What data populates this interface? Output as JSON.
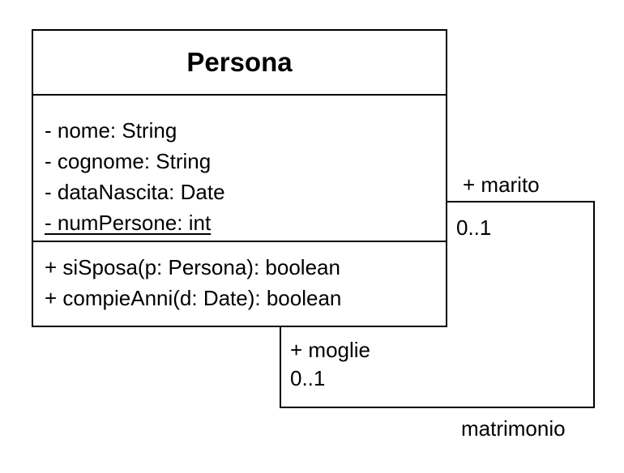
{
  "class": {
    "name": "Persona",
    "attributes": [
      {
        "text": "- nome: String",
        "static": false
      },
      {
        "text": "- cognome: String",
        "static": false
      },
      {
        "text": "- dataNascita: Date",
        "static": false
      },
      {
        "text": "- numPersone: int",
        "static": true
      }
    ],
    "operations": [
      {
        "text": "+ siSposa(p: Persona): boolean"
      },
      {
        "text": "+ compieAnni(d: Date): boolean"
      }
    ]
  },
  "association": {
    "name": "matrimonio",
    "end_marito": {
      "role": "+ marito",
      "multiplicity": "0..1"
    },
    "end_moglie": {
      "role": "+ moglie",
      "multiplicity": "0..1"
    }
  }
}
